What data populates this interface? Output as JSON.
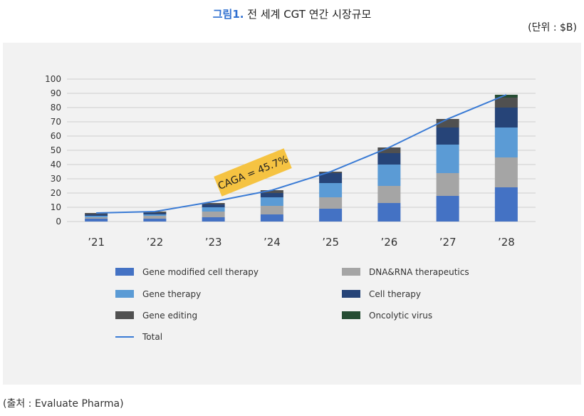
{
  "header": {
    "figure_number": "그림1.",
    "figure_title": "전 세계 CGT 연간 시장규모",
    "unit": "(단위 : $B)"
  },
  "footer": {
    "source": "(출처 : Evaluate Pharma)"
  },
  "chart_data": {
    "type": "bar",
    "stacked": true,
    "categories": [
      "’21",
      "’22",
      "’23",
      "’24",
      "’25",
      "’26",
      "’27",
      "’28"
    ],
    "ylim": [
      0,
      100
    ],
    "yticks": [
      0,
      10,
      20,
      30,
      40,
      50,
      60,
      70,
      80,
      90,
      100
    ],
    "grid": true,
    "legend_position": "bottom",
    "series": [
      {
        "name": "Gene modified cell therapy",
        "color": "#4472c4",
        "values": [
          2,
          2,
          3,
          5,
          9,
          13,
          18,
          24
        ]
      },
      {
        "name": "DNA&RNA therapeutics",
        "color": "#a5a5a5",
        "values": [
          1,
          2,
          4,
          6,
          8,
          12,
          16,
          21
        ]
      },
      {
        "name": "Gene therapy",
        "color": "#5b9bd5",
        "values": [
          1,
          1,
          3,
          6,
          10,
          15,
          20,
          21
        ]
      },
      {
        "name": "Cell therapy",
        "color": "#264478",
        "values": [
          1,
          1,
          2,
          3,
          7,
          8,
          12,
          14
        ]
      },
      {
        "name": "Gene editing",
        "color": "#505050",
        "values": [
          1,
          1,
          1,
          2,
          1,
          4,
          6,
          7
        ]
      },
      {
        "name": "Oncolytic virus",
        "color": "#264d33",
        "values": [
          0,
          0,
          0,
          0,
          0,
          0,
          0,
          2
        ]
      }
    ],
    "line": {
      "name": "Total",
      "color": "#3a7bd5",
      "values": [
        6,
        7,
        14,
        22,
        35,
        52,
        72,
        89
      ]
    },
    "annotation": {
      "text": "CAGA = 45.7%",
      "color": "#f5c342"
    }
  }
}
